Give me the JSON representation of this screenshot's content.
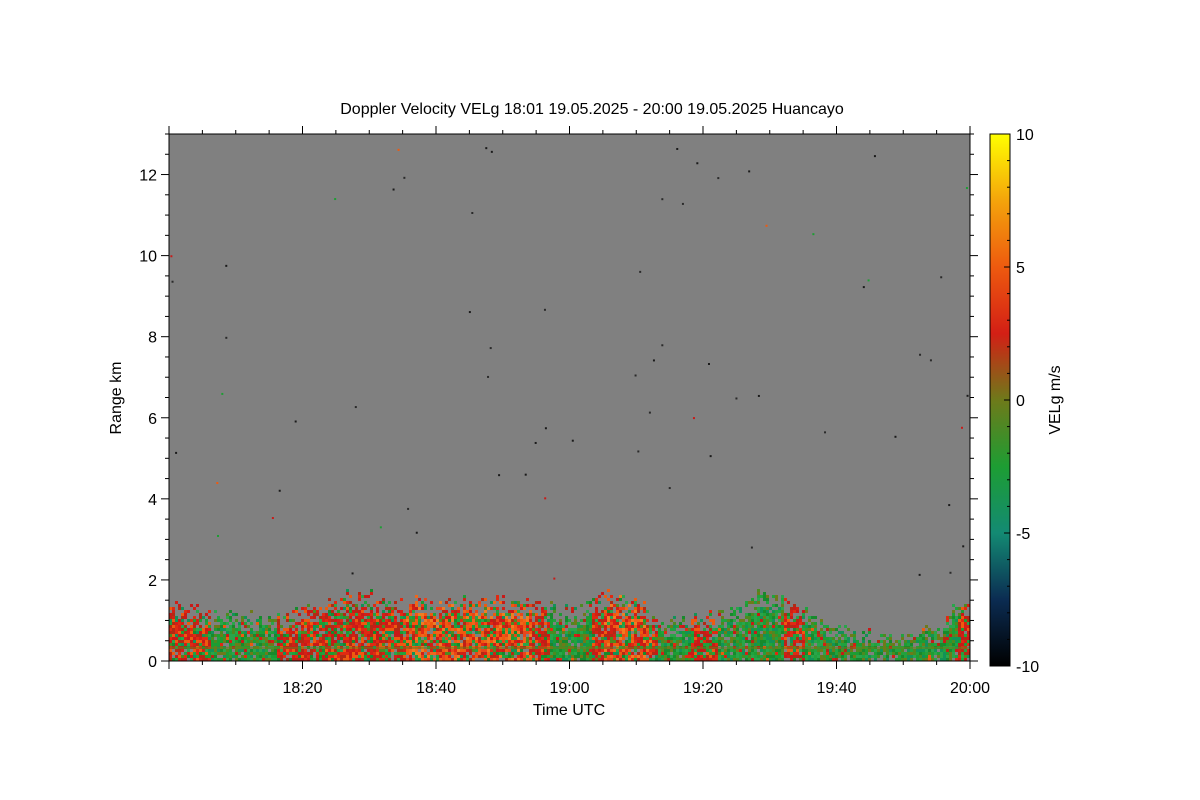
{
  "chart_data": {
    "type": "heatmap",
    "title": "Doppler Velocity VELg   18:01 19.05.2025 - 20:00 19.05.2025 Huancayo",
    "xlabel": "Time UTC",
    "ylabel": "Range km",
    "colorbar_label": "VELg m/s",
    "x_range_minutes": [
      0,
      120
    ],
    "x_ticks": [
      {
        "minute": 20,
        "label": "18:20"
      },
      {
        "minute": 40,
        "label": "18:40"
      },
      {
        "minute": 60,
        "label": "19:00"
      },
      {
        "minute": 80,
        "label": "19:20"
      },
      {
        "minute": 100,
        "label": "19:40"
      },
      {
        "minute": 120,
        "label": "20:00"
      }
    ],
    "ylim": [
      0,
      13
    ],
    "y_ticks": [
      {
        "value": 0,
        "label": "0"
      },
      {
        "value": 2,
        "label": "2"
      },
      {
        "value": 4,
        "label": "4"
      },
      {
        "value": 6,
        "label": "6"
      },
      {
        "value": 8,
        "label": "8"
      },
      {
        "value": 10,
        "label": "10"
      },
      {
        "value": 12,
        "label": "12"
      }
    ],
    "colorbar_range": [
      -10,
      10
    ],
    "colorbar_ticks": [
      {
        "value": 10,
        "label": "10"
      },
      {
        "value": 5,
        "label": "5"
      },
      {
        "value": 0,
        "label": "0"
      },
      {
        "value": -5,
        "label": "-5"
      },
      {
        "value": -10,
        "label": "-10"
      }
    ],
    "colormap": [
      "#000000",
      "#0b2c52",
      "#138a73",
      "#1d9d33",
      "#6e7a1a",
      "#d31f15",
      "#ee5a0f",
      "#f4a40b",
      "#ffff00"
    ],
    "background_color": "#808080",
    "echo_layer": {
      "description_free": true,
      "top_km": [
        [
          0,
          1.3
        ],
        [
          5,
          1.1
        ],
        [
          10,
          1.0
        ],
        [
          15,
          1.0
        ],
        [
          20,
          1.1
        ],
        [
          25,
          1.4
        ],
        [
          28,
          1.6
        ],
        [
          32,
          1.4
        ],
        [
          36,
          1.4
        ],
        [
          40,
          1.3
        ],
        [
          45,
          1.4
        ],
        [
          50,
          1.4
        ],
        [
          55,
          1.3
        ],
        [
          60,
          1.1
        ],
        [
          65,
          1.5
        ],
        [
          70,
          1.3
        ],
        [
          75,
          0.8
        ],
        [
          80,
          1.0
        ],
        [
          85,
          1.2
        ],
        [
          88,
          1.5
        ],
        [
          90,
          1.6
        ],
        [
          95,
          1.1
        ],
        [
          100,
          0.7
        ],
        [
          105,
          0.5
        ],
        [
          110,
          0.5
        ],
        [
          115,
          0.7
        ],
        [
          118,
          1.3
        ],
        [
          120,
          1.5
        ]
      ],
      "red_zones_minutes": [
        [
          0,
          6
        ],
        [
          16,
          57
        ],
        [
          63,
          73
        ],
        [
          78,
          82
        ],
        [
          92,
          95
        ],
        [
          118,
          120
        ]
      ],
      "green_zones_minutes": [
        [
          6,
          16
        ],
        [
          57,
          63
        ],
        [
          73,
          92
        ],
        [
          95,
          118
        ]
      ],
      "orange_zones_minutes": [
        [
          35,
          54
        ],
        [
          65,
          72
        ]
      ]
    }
  }
}
